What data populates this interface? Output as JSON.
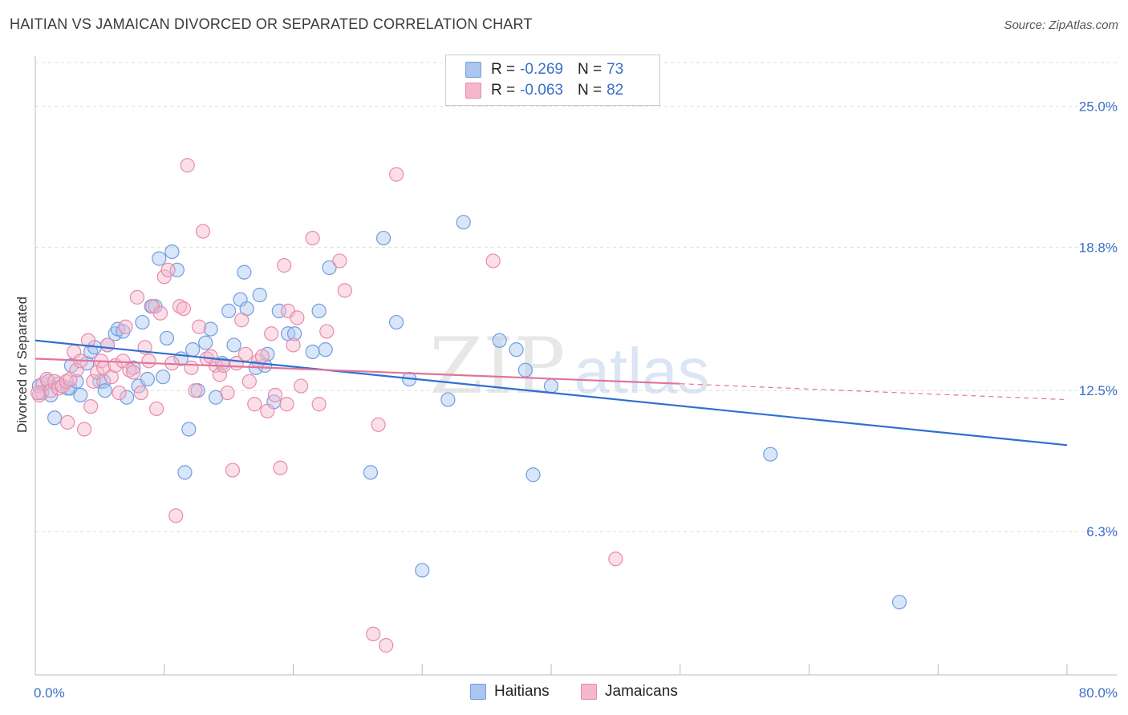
{
  "title": "HAITIAN VS JAMAICAN DIVORCED OR SEPARATED CORRELATION CHART",
  "source": "Source: ZipAtlas.com",
  "watermark": {
    "zip": "ZIP",
    "atlas": "atlas"
  },
  "colors": {
    "blue_fill": "#aac6ef",
    "blue_stroke": "#6f9ee0",
    "blue_line": "#2f6fd0",
    "pink_fill": "#f5b7cb",
    "pink_stroke": "#e98aa9",
    "pink_line": "#e3739a",
    "grid": "#dddddd",
    "axis_text": "#3b6fc7"
  },
  "legend": {
    "rows": [
      {
        "r_label": "R =",
        "r_value": "-0.269",
        "n_label": "N =",
        "n_value": "73"
      },
      {
        "r_label": "R =",
        "r_value": "-0.063",
        "n_label": "N =",
        "n_value": "82"
      }
    ]
  },
  "bottom_legend": {
    "series1": "Haitians",
    "series2": "Jamaicans"
  },
  "chart_data": {
    "type": "scatter",
    "title": "HAITIAN VS JAMAICAN DIVORCED OR SEPARATED CORRELATION CHART",
    "xlabel": "",
    "ylabel": "Divorced or Separated",
    "xlim": [
      0,
      80
    ],
    "ylim": [
      0,
      27.2
    ],
    "x_tick_labels": [
      "0.0%",
      "80.0%"
    ],
    "y_ticks": [
      6.3,
      12.5,
      18.8,
      25.0
    ],
    "y_tick_labels": [
      "6.3%",
      "12.5%",
      "18.8%",
      "25.0%"
    ],
    "grid": true,
    "legend_placement": "top-center",
    "series": [
      {
        "name": "Haitians",
        "color": "#aac6ef",
        "trend": {
          "x": [
            0,
            80
          ],
          "y": [
            14.7,
            10.1
          ]
        },
        "points": [
          [
            0.3,
            12.7
          ],
          [
            0.5,
            12.4
          ],
          [
            1.0,
            12.9
          ],
          [
            1.2,
            12.3
          ],
          [
            1.5,
            11.3
          ],
          [
            1.8,
            12.8
          ],
          [
            2.5,
            12.6
          ],
          [
            2.7,
            12.6
          ],
          [
            2.8,
            13.6
          ],
          [
            3.2,
            12.9
          ],
          [
            3.5,
            12.3
          ],
          [
            4.0,
            13.7
          ],
          [
            4.3,
            14.2
          ],
          [
            4.6,
            14.4
          ],
          [
            5.0,
            12.9
          ],
          [
            5.3,
            12.9
          ],
          [
            5.6,
            14.5
          ],
          [
            6.2,
            15.0
          ],
          [
            6.4,
            15.2
          ],
          [
            6.8,
            15.1
          ],
          [
            7.1,
            12.2
          ],
          [
            7.6,
            13.5
          ],
          [
            8.0,
            12.7
          ],
          [
            8.3,
            15.5
          ],
          [
            8.7,
            13.0
          ],
          [
            9.0,
            16.2
          ],
          [
            9.3,
            16.2
          ],
          [
            9.6,
            18.3
          ],
          [
            9.9,
            13.1
          ],
          [
            10.2,
            14.8
          ],
          [
            10.6,
            18.6
          ],
          [
            11.0,
            17.8
          ],
          [
            11.3,
            13.9
          ],
          [
            11.9,
            10.8
          ],
          [
            12.2,
            14.3
          ],
          [
            12.6,
            12.5
          ],
          [
            13.2,
            14.6
          ],
          [
            13.6,
            15.2
          ],
          [
            14.0,
            12.2
          ],
          [
            14.5,
            13.7
          ],
          [
            15.0,
            16.0
          ],
          [
            15.4,
            14.5
          ],
          [
            15.9,
            16.5
          ],
          [
            16.2,
            17.7
          ],
          [
            16.4,
            16.1
          ],
          [
            17.1,
            13.5
          ],
          [
            17.4,
            16.7
          ],
          [
            17.8,
            13.6
          ],
          [
            18.0,
            14.1
          ],
          [
            18.5,
            12.0
          ],
          [
            18.9,
            16.0
          ],
          [
            19.6,
            15.0
          ],
          [
            20.1,
            15.0
          ],
          [
            21.5,
            14.2
          ],
          [
            22.0,
            16.0
          ],
          [
            22.5,
            14.3
          ],
          [
            22.8,
            17.9
          ],
          [
            26.0,
            8.9
          ],
          [
            27.0,
            19.2
          ],
          [
            28.0,
            15.5
          ],
          [
            29.0,
            13.0
          ],
          [
            30.0,
            4.6
          ],
          [
            32.0,
            12.1
          ],
          [
            33.2,
            19.9
          ],
          [
            36.0,
            14.7
          ],
          [
            37.3,
            14.3
          ],
          [
            38.0,
            13.4
          ],
          [
            38.6,
            8.8
          ],
          [
            40.0,
            12.7
          ],
          [
            57.0,
            9.7
          ],
          [
            67.0,
            3.2
          ],
          [
            11.6,
            8.9
          ],
          [
            5.4,
            12.5
          ]
        ]
      },
      {
        "name": "Jamaicans",
        "color": "#f5b7cb",
        "trend": {
          "x": [
            0,
            50
          ],
          "y": [
            13.9,
            12.8
          ]
        },
        "trend_dashed": {
          "x": [
            50,
            80
          ],
          "y": [
            12.8,
            12.1
          ]
        },
        "points": [
          [
            0.3,
            12.3
          ],
          [
            0.6,
            12.8
          ],
          [
            0.9,
            13.0
          ],
          [
            1.2,
            12.5
          ],
          [
            1.5,
            12.9
          ],
          [
            1.8,
            12.6
          ],
          [
            2.1,
            12.7
          ],
          [
            2.4,
            12.9
          ],
          [
            2.7,
            13.0
          ],
          [
            3.0,
            14.2
          ],
          [
            3.2,
            13.4
          ],
          [
            3.5,
            13.8
          ],
          [
            3.8,
            10.8
          ],
          [
            4.1,
            14.7
          ],
          [
            4.3,
            11.8
          ],
          [
            4.5,
            12.9
          ],
          [
            4.8,
            13.3
          ],
          [
            5.1,
            13.8
          ],
          [
            5.3,
            13.5
          ],
          [
            5.6,
            14.5
          ],
          [
            5.9,
            13.1
          ],
          [
            6.2,
            13.6
          ],
          [
            6.5,
            12.4
          ],
          [
            6.8,
            13.8
          ],
          [
            7.0,
            15.3
          ],
          [
            7.3,
            13.4
          ],
          [
            7.6,
            13.3
          ],
          [
            7.9,
            16.6
          ],
          [
            8.2,
            12.4
          ],
          [
            8.5,
            14.4
          ],
          [
            8.8,
            13.8
          ],
          [
            9.1,
            16.2
          ],
          [
            9.4,
            11.7
          ],
          [
            9.7,
            15.9
          ],
          [
            10.0,
            17.5
          ],
          [
            10.3,
            17.8
          ],
          [
            10.6,
            13.7
          ],
          [
            10.9,
            7.0
          ],
          [
            11.2,
            16.2
          ],
          [
            11.5,
            16.1
          ],
          [
            11.8,
            22.4
          ],
          [
            12.1,
            13.5
          ],
          [
            12.4,
            12.5
          ],
          [
            12.7,
            15.3
          ],
          [
            13.0,
            19.5
          ],
          [
            13.3,
            13.9
          ],
          [
            13.6,
            14.0
          ],
          [
            14.0,
            13.6
          ],
          [
            14.3,
            13.2
          ],
          [
            14.6,
            13.6
          ],
          [
            14.9,
            12.4
          ],
          [
            15.3,
            9.0
          ],
          [
            15.6,
            13.7
          ],
          [
            16.0,
            15.6
          ],
          [
            16.3,
            14.1
          ],
          [
            16.6,
            12.9
          ],
          [
            17.0,
            11.9
          ],
          [
            17.3,
            13.8
          ],
          [
            17.6,
            14.0
          ],
          [
            18.0,
            11.6
          ],
          [
            18.3,
            15.0
          ],
          [
            18.6,
            12.3
          ],
          [
            19.0,
            9.1
          ],
          [
            19.3,
            18.0
          ],
          [
            19.6,
            16.0
          ],
          [
            20.0,
            14.5
          ],
          [
            20.3,
            15.7
          ],
          [
            20.6,
            12.7
          ],
          [
            21.5,
            19.2
          ],
          [
            22.0,
            11.9
          ],
          [
            22.6,
            15.1
          ],
          [
            23.6,
            18.2
          ],
          [
            24.0,
            16.9
          ],
          [
            26.2,
            1.8
          ],
          [
            26.6,
            11.0
          ],
          [
            27.2,
            1.3
          ],
          [
            28.0,
            22.0
          ],
          [
            35.5,
            18.2
          ],
          [
            45.0,
            5.1
          ],
          [
            2.5,
            11.1
          ],
          [
            19.5,
            11.9
          ],
          [
            0.2,
            12.4
          ]
        ]
      }
    ]
  }
}
